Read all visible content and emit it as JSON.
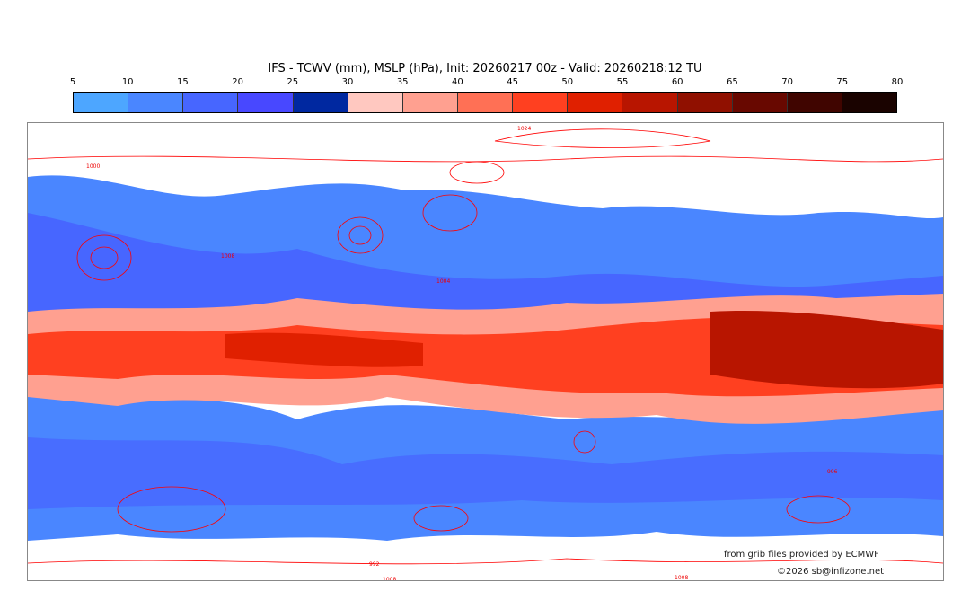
{
  "title": "IFS - TCWV (mm), MSLP (hPa), Init: 20260217 00z - Valid: 20260218:12 TU",
  "colorbar": {
    "ticks": [
      "5",
      "10",
      "15",
      "20",
      "25",
      "30",
      "35",
      "40",
      "45",
      "50",
      "55",
      "60",
      "65",
      "70",
      "75",
      "80"
    ],
    "colors": [
      "#4da6ff",
      "#4a86ff",
      "#4766ff",
      "#4848ff",
      "#0028a0",
      "#ffc8c0",
      "#ffa090",
      "#ff7055",
      "#ff4020",
      "#e02000",
      "#b81500",
      "#901000",
      "#680800",
      "#400500",
      "#1a0300"
    ]
  },
  "map": {
    "isobar_labels": [
      "1024",
      "1000",
      "1008",
      "1004",
      "996",
      "992",
      "1008",
      "1008"
    ]
  },
  "credits": {
    "source": "from grib files provided by ECMWF",
    "copyright": "©2026 sb@infizone.net"
  }
}
